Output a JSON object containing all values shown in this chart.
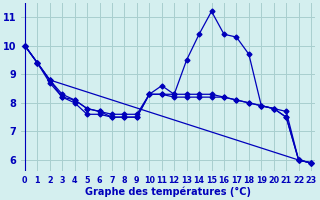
{
  "title": "",
  "xlabel": "Graphe des températures (°C)",
  "ylabel": "",
  "bg_color": "#d4efef",
  "grid_color": "#a8cece",
  "line_color": "#0000bb",
  "x": [
    0,
    1,
    2,
    3,
    4,
    5,
    6,
    7,
    8,
    9,
    10,
    11,
    12,
    13,
    14,
    15,
    16,
    17,
    18,
    19,
    20,
    21,
    22,
    23
  ],
  "line1": [
    10.0,
    9.4,
    8.8,
    8.2,
    8.0,
    7.6,
    7.6,
    7.5,
    7.5,
    7.5,
    8.3,
    8.6,
    8.3,
    9.5,
    10.4,
    11.2,
    10.4,
    10.3,
    9.7,
    7.9,
    7.8,
    7.5,
    6.0,
    5.9
  ],
  "line2": [
    10.0,
    9.4,
    8.8,
    8.3,
    8.1,
    7.8,
    7.7,
    7.6,
    7.6,
    7.6,
    8.3,
    8.3,
    8.3,
    8.3,
    8.3,
    8.3,
    8.2,
    8.1,
    8.0,
    7.9,
    7.8,
    7.7,
    6.0,
    5.9
  ],
  "line3": [
    10.0,
    9.4,
    8.7,
    8.2,
    8.1,
    7.8,
    7.7,
    7.5,
    7.5,
    7.5,
    8.3,
    8.3,
    8.2,
    8.2,
    8.2,
    8.2,
    8.2,
    8.1,
    8.0,
    7.9,
    7.8,
    7.5,
    6.0,
    5.9
  ],
  "line4_x": [
    0,
    1,
    2,
    22,
    23
  ],
  "line4_y": [
    10.0,
    9.4,
    8.8,
    6.0,
    5.9
  ],
  "ylim": [
    5.6,
    11.5
  ],
  "yticks": [
    6,
    7,
    8,
    9,
    10,
    11
  ],
  "xticks": [
    0,
    1,
    2,
    3,
    4,
    5,
    6,
    7,
    8,
    9,
    10,
    11,
    12,
    13,
    14,
    15,
    16,
    17,
    18,
    19,
    20,
    21,
    22,
    23
  ],
  "figsize": [
    3.2,
    2.0
  ],
  "dpi": 100
}
